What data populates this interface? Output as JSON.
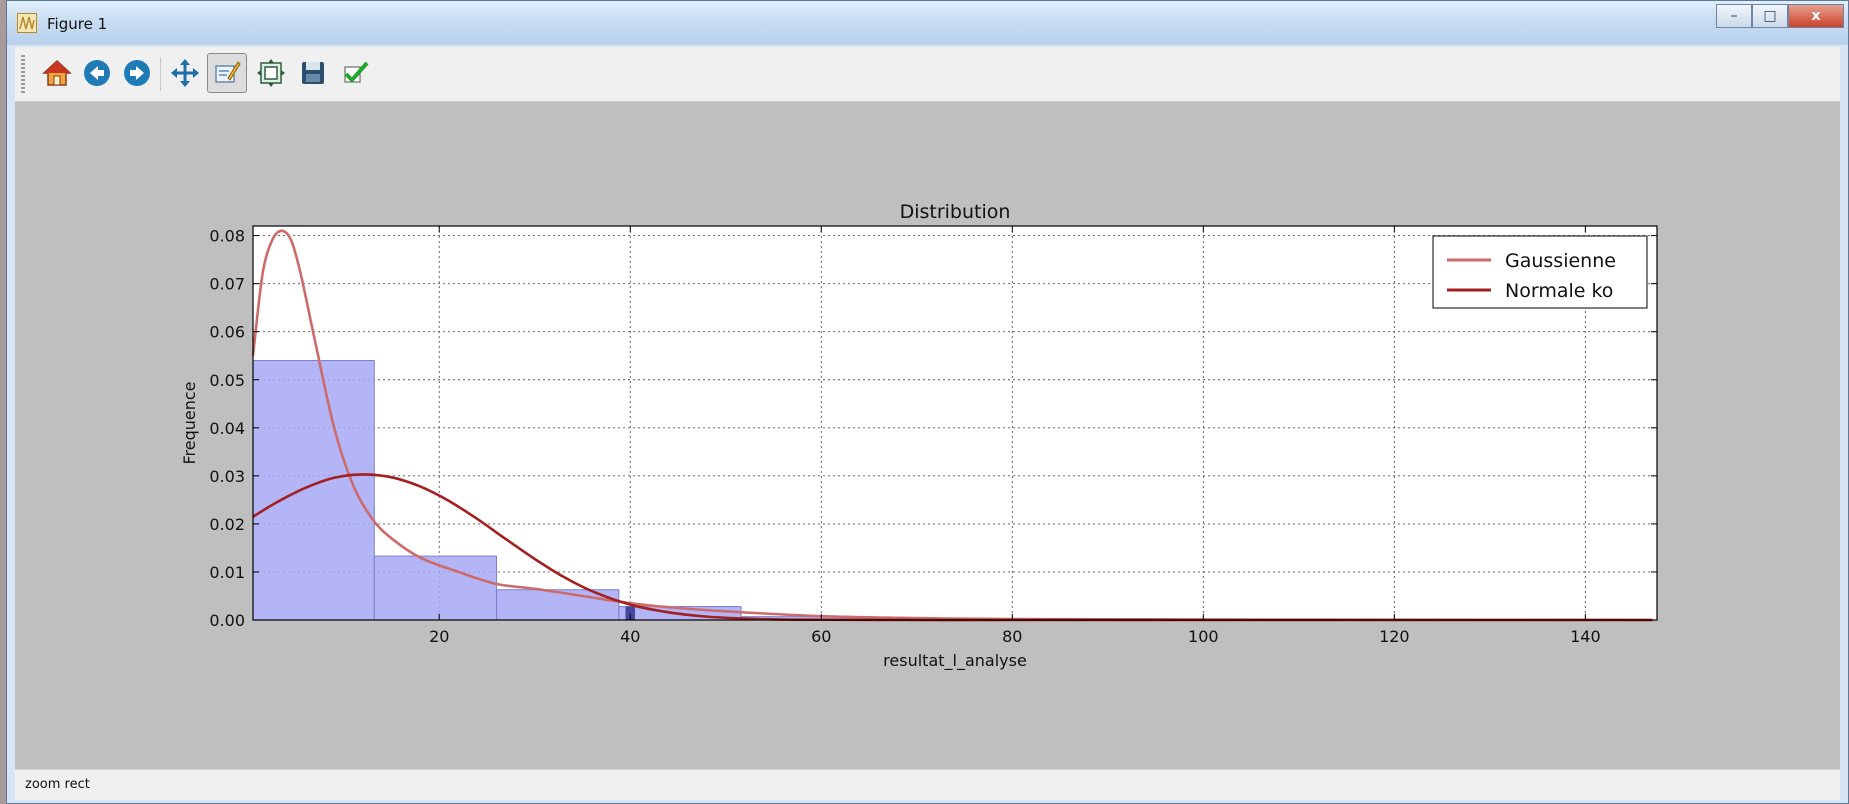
{
  "window": {
    "title": "Figure 1",
    "minimize": "–",
    "maximize": "□",
    "close": "x"
  },
  "toolbar": {
    "buttons": [
      {
        "name": "home-icon",
        "tooltip": "Home"
      },
      {
        "name": "back-icon",
        "tooltip": "Back"
      },
      {
        "name": "forward-icon",
        "tooltip": "Forward"
      },
      {
        "name": "pan-icon",
        "tooltip": "Pan"
      },
      {
        "name": "zoom-icon",
        "tooltip": "Zoom",
        "active": true
      },
      {
        "name": "subplots-icon",
        "tooltip": "Subplots"
      },
      {
        "name": "save-icon",
        "tooltip": "Save"
      },
      {
        "name": "edit-checkmark-icon",
        "tooltip": "Edit"
      }
    ]
  },
  "status": {
    "text": "zoom rect"
  },
  "colors": {
    "bar_fill": "#a6a8f5",
    "bar_edge": "#7c7fd0",
    "gaussienne": "#cd6b6b",
    "normale": "#a32020",
    "canvas_bg": "#bfbfbf"
  },
  "chart_data": {
    "type": "bar",
    "title": "Distribution",
    "xlabel": "resultat_l_analyse",
    "ylabel": "Frequence",
    "xlim": [
      0.5,
      147.5
    ],
    "ylim": [
      0,
      0.082
    ],
    "xticks": [
      20,
      40,
      60,
      80,
      100,
      120,
      140
    ],
    "yticks": [
      0.0,
      0.01,
      0.02,
      0.03,
      0.04,
      0.05,
      0.06,
      0.07,
      0.08
    ],
    "ytick_labels": [
      "0.00",
      "0.01",
      "0.02",
      "0.03",
      "0.04",
      "0.05",
      "0.06",
      "0.07",
      "0.08"
    ],
    "grid": true,
    "legend": {
      "position": "top-right",
      "entries": [
        "Gaussienne",
        "Normale ko"
      ]
    },
    "histogram": [
      {
        "x0": 0.5,
        "x1": 13.2,
        "y": 0.054
      },
      {
        "x0": 13.2,
        "x1": 26.0,
        "y": 0.0133
      },
      {
        "x0": 26.0,
        "x1": 38.8,
        "y": 0.0063
      },
      {
        "x0": 38.8,
        "x1": 51.6,
        "y": 0.0028
      },
      {
        "x0": 51.6,
        "x1": 64.4,
        "y": 0.0007
      },
      {
        "x0": 64.4,
        "x1": 77.2,
        "y": 0.0002
      }
    ],
    "highlight": {
      "x0": 39.5,
      "x1": 40.5,
      "y": 0.0028
    },
    "series": [
      {
        "name": "Gaussienne",
        "x": [
          0.5,
          1.5,
          2.5,
          3.5,
          4.5,
          5.5,
          7,
          9,
          11,
          13,
          15,
          18,
          22,
          26,
          30,
          35,
          40,
          45,
          50,
          60,
          70,
          80,
          100,
          120,
          147
        ],
        "y": [
          0.055,
          0.072,
          0.079,
          0.081,
          0.079,
          0.072,
          0.058,
          0.04,
          0.028,
          0.021,
          0.017,
          0.013,
          0.01,
          0.0075,
          0.0065,
          0.005,
          0.0035,
          0.0025,
          0.0018,
          0.0008,
          0.0004,
          0.0002,
          0.0001,
          5e-05,
          0.0
        ]
      },
      {
        "name": "Normale ko",
        "x": [
          0.5,
          3,
          6,
          9,
          12,
          15,
          18,
          21,
          24,
          27,
          30,
          33,
          36,
          40,
          44,
          48,
          52,
          56,
          60,
          70,
          80,
          100,
          147
        ],
        "y": [
          0.0215,
          0.0245,
          0.0275,
          0.0296,
          0.0303,
          0.0297,
          0.0278,
          0.0248,
          0.021,
          0.0168,
          0.0127,
          0.009,
          0.006,
          0.0032,
          0.0016,
          0.0007,
          0.0003,
          0.0001,
          5e-05,
          0.0,
          0.0,
          0.0,
          0.0
        ]
      }
    ]
  }
}
